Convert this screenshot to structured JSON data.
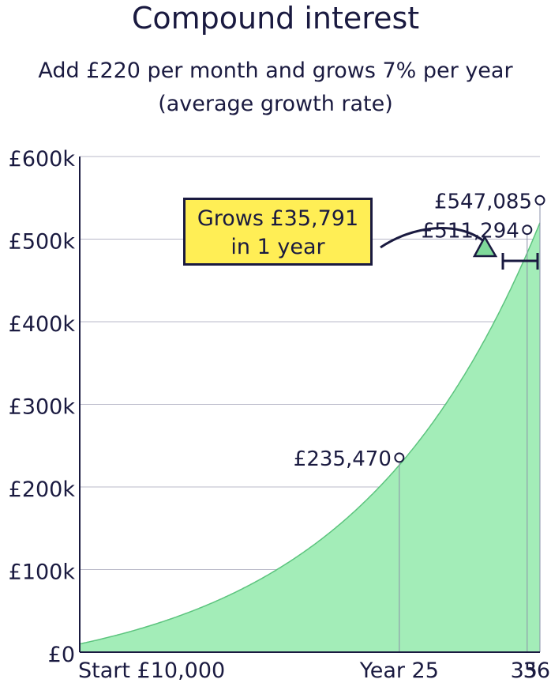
{
  "title": "Compound interest",
  "subtitle_line1": "Add £220 per month and grows 7% per year",
  "subtitle_line2": "(average growth rate)",
  "callout": {
    "line1": "Grows £35,791",
    "line2": "in 1 year"
  },
  "colors": {
    "text": "#1a1a40",
    "area_fill": "#a3edb8",
    "area_line": "#5cc47e",
    "callout_bg": "#ffee55",
    "grid": "#b8b8c8",
    "marker_fill": "#7fd99a"
  },
  "chart_data": {
    "type": "area",
    "title": "Compound interest",
    "subtitle": "Add £220 per month and grows 7% per year (average growth rate)",
    "start_value": 10000,
    "monthly_contribution": 220,
    "annual_growth_rate": 0.07,
    "xlim": [
      0,
      36
    ],
    "ylim": [
      0,
      600000
    ],
    "yticks": [
      0,
      100000,
      200000,
      300000,
      400000,
      500000,
      600000
    ],
    "ytick_labels": [
      "£0",
      "£100k",
      "£200k",
      "£300k",
      "£400k",
      "£500k",
      "£600k"
    ],
    "xticks": [
      {
        "x": 0,
        "label": "Start £10,000"
      },
      {
        "x": 25,
        "label": "Year 25"
      },
      {
        "x": 35,
        "label": "35"
      },
      {
        "x": 36,
        "label": "36"
      }
    ],
    "highlighted_points": [
      {
        "x": 25,
        "y": 235470,
        "label": "£235,470"
      },
      {
        "x": 35,
        "y": 511294,
        "label": "£511,294"
      },
      {
        "x": 36,
        "y": 547085,
        "label": "£547,085"
      }
    ],
    "grid": true,
    "annotation": "Grows £35,791 in 1 year"
  }
}
